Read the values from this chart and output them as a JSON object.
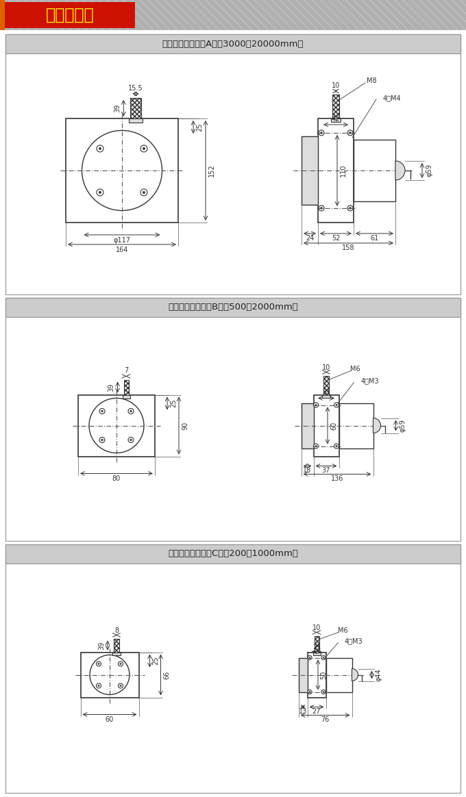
{
  "title_text": "安装示意图",
  "sec_a_label": "拉钢索式结构（大A型：3000－20000mm）",
  "sec_b_label": "拉钢索式结构（中B型：500－2000mm）",
  "sec_c_label": "拉钢索式结构（小C型：200－1000mm）",
  "bg": "#ffffff",
  "header_bg": "#cccccc",
  "title_bar_bg": "#aaaaaa",
  "title_accent": "#e05000",
  "dim_color": "#333333",
  "body_lw": 1.2,
  "dim_lw": 0.7
}
